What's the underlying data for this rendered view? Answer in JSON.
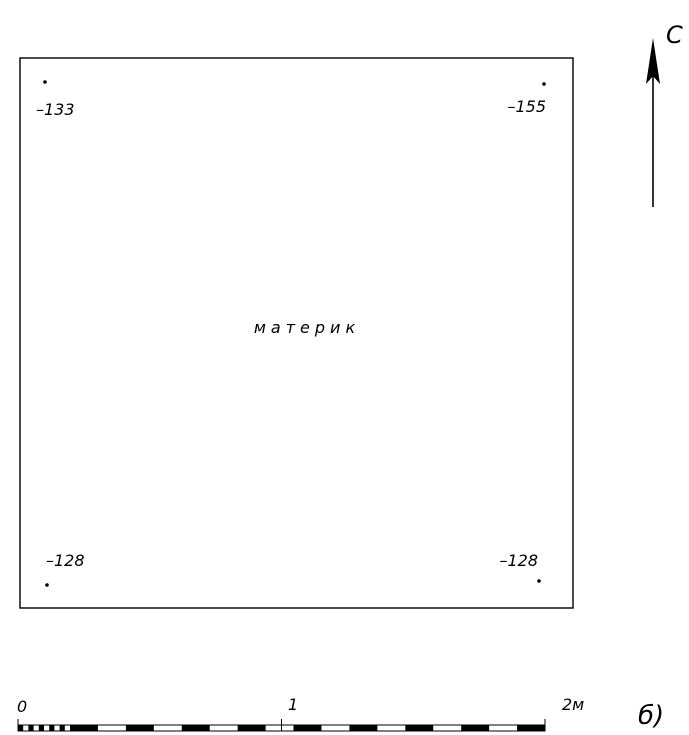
{
  "plan": {
    "elevations": {
      "top_left": "–133",
      "top_right": "–155",
      "bottom_left": "–128",
      "bottom_right": "–128"
    },
    "fill_label": "материк"
  },
  "north_arrow": {
    "label": "С"
  },
  "scale_bar": {
    "label_start": "0",
    "label_mid": "1",
    "label_end": "2м"
  },
  "figure_label": "б)"
}
